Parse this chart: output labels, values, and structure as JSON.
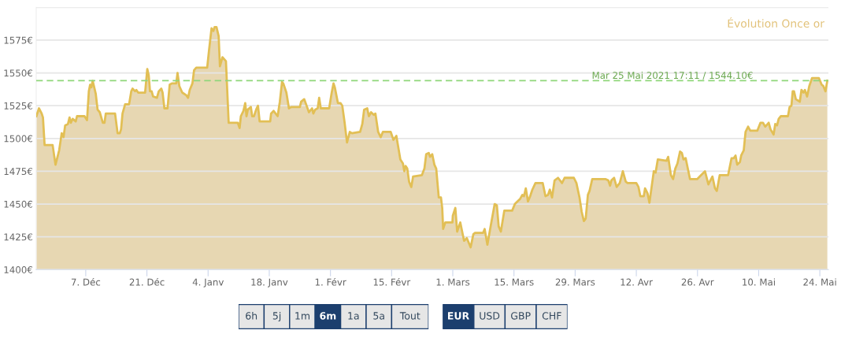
{
  "chart_data": [
    {
      "type": "area",
      "title": "Évolution Once or",
      "grid": "y",
      "legend": false,
      "xlim": [
        "2020-11-25T16:00",
        "2021-05-25T23:00"
      ],
      "ylim": [
        1400,
        1600
      ],
      "yticks": [
        {
          "value": 1400,
          "label": "1400€"
        },
        {
          "value": 1425,
          "label": "1425€"
        },
        {
          "value": 1450,
          "label": "1450€"
        },
        {
          "value": 1475,
          "label": "1475€"
        },
        {
          "value": 1500,
          "label": "1500€"
        },
        {
          "value": 1525,
          "label": "1525€"
        },
        {
          "value": 1550,
          "label": "1550€"
        },
        {
          "value": 1575,
          "label": "1575€"
        },
        {
          "value": 1600,
          "label": null
        }
      ],
      "xticks": [
        {
          "value": "2020-12-07",
          "label": "7. Déc"
        },
        {
          "value": "2020-12-21",
          "label": "21. Déc"
        },
        {
          "value": "2021-01-04",
          "label": "4. Janv"
        },
        {
          "value": "2021-01-18",
          "label": "18. Janv"
        },
        {
          "value": "2021-02-01",
          "label": "1. Févr"
        },
        {
          "value": "2021-02-15",
          "label": "15. Févr"
        },
        {
          "value": "2021-03-01",
          "label": "1. Mars"
        },
        {
          "value": "2021-03-15",
          "label": "15. Mars"
        },
        {
          "value": "2021-03-29",
          "label": "29. Mars"
        },
        {
          "value": "2021-04-12",
          "label": "12. Avr"
        },
        {
          "value": "2021-04-26",
          "label": "26. Avr"
        },
        {
          "value": "2021-05-10",
          "label": "10. Mai"
        },
        {
          "value": "2021-05-24",
          "label": "24. Mai"
        }
      ],
      "ref_lines": [
        {
          "axis": "y",
          "value": 1544.1,
          "label": "Mar 25 Mai 2021 17:11 / 1544.10€",
          "color": "#8fd67a",
          "line_style": "dashed"
        }
      ],
      "series": [
        {
          "color": "#e2bf55",
          "x": [
            "2020-11-25T17:00",
            "2020-11-26T07:00",
            "2020-11-26T22:00",
            "2020-11-27T05:00",
            "2020-11-27T14:00",
            "2020-11-29T10:00",
            "2020-11-30T02:00",
            "2020-11-30T22:00",
            "2020-12-01T12:00",
            "2020-12-01T22:00",
            "2020-12-02T07:00",
            "2020-12-02T22:00",
            "2020-12-03T07:00",
            "2020-12-03T14:00",
            "2020-12-04T00:00",
            "2020-12-04T17:00",
            "2020-12-05T00:00",
            "2020-12-06T17:00",
            "2020-12-07T07:00",
            "2020-12-07T17:00",
            "2020-12-08T00:00",
            "2020-12-08T07:00",
            "2020-12-08T14:00",
            "2020-12-09T07:00",
            "2020-12-09T17:00",
            "2020-12-10T05:00",
            "2020-12-10T22:00",
            "2020-12-11T07:00",
            "2020-12-11T14:00",
            "2020-12-12T02:00",
            "2020-12-13T17:00",
            "2020-12-14T07:00",
            "2020-12-14T19:00",
            "2020-12-15T02:00",
            "2020-12-15T10:00",
            "2020-12-16T00:00",
            "2020-12-16T22:00",
            "2020-12-17T10:00",
            "2020-12-17T17:00",
            "2020-12-18T07:00",
            "2020-12-18T14:00",
            "2020-12-19T00:00",
            "2020-12-20T14:00",
            "2020-12-21T02:00",
            "2020-12-21T10:00",
            "2020-12-21T17:00",
            "2020-12-22T02:00",
            "2020-12-22T10:00",
            "2020-12-23T07:00",
            "2020-12-23T17:00",
            "2020-12-24T07:00",
            "2020-12-24T14:00",
            "2020-12-25T00:00",
            "2020-12-25T17:00",
            "2020-12-26T05:00",
            "2020-12-26T17:00",
            "2020-12-27T17:00",
            "2020-12-28T00:00",
            "2020-12-28T10:00",
            "2020-12-29T02:00",
            "2020-12-30T00:00",
            "2020-12-30T10:00",
            "2020-12-30T19:00",
            "2020-12-31T10:00",
            "2020-12-31T19:00",
            "2021-01-01T07:00",
            "2021-01-03T19:00",
            "2021-01-04T05:00",
            "2021-01-04T19:00",
            "2021-01-05T05:00",
            "2021-01-05T12:00",
            "2021-01-05T22:00",
            "2021-01-06T10:00",
            "2021-01-06T17:00",
            "2021-01-07T07:00",
            "2021-01-08T02:00",
            "2021-01-08T17:00",
            "2021-01-10T19:00",
            "2021-01-11T05:00",
            "2021-01-11T12:00",
            "2021-01-12T02:00",
            "2021-01-12T12:00",
            "2021-01-12T19:00",
            "2021-01-13T02:00",
            "2021-01-13T19:00",
            "2021-01-14T02:00",
            "2021-01-14T12:00",
            "2021-01-15T00:00",
            "2021-01-15T10:00",
            "2021-01-15T19:00",
            "2021-01-18T05:00",
            "2021-01-18T10:00",
            "2021-01-19T00:00",
            "2021-01-19T22:00",
            "2021-01-20T10:00",
            "2021-01-20T22:00",
            "2021-01-21T05:00",
            "2021-01-21T22:00",
            "2021-01-22T12:00",
            "2021-01-23T02:00",
            "2021-01-25T00:00",
            "2021-01-25T07:00",
            "2021-01-26T00:00",
            "2021-01-27T02:00",
            "2021-01-27T19:00",
            "2021-01-28T02:00",
            "2021-01-28T12:00",
            "2021-01-29T02:00",
            "2021-01-29T10:00",
            "2021-01-29T19:00",
            "2021-01-31T17:00",
            "2021-02-01T07:00",
            "2021-02-01T17:00",
            "2021-02-02T00:00",
            "2021-02-02T17:00",
            "2021-02-03T07:00",
            "2021-02-03T17:00",
            "2021-02-04T05:00",
            "2021-02-04T19:00",
            "2021-02-05T10:00",
            "2021-02-05T22:00",
            "2021-02-07T19:00",
            "2021-02-08T07:00",
            "2021-02-08T17:00",
            "2021-02-09T10:00",
            "2021-02-09T19:00",
            "2021-02-10T07:00",
            "2021-02-10T22:00",
            "2021-02-11T07:00",
            "2021-02-11T22:00",
            "2021-02-12T12:00",
            "2021-02-13T00:00",
            "2021-02-14T19:00",
            "2021-02-15T10:00",
            "2021-02-16T02:00",
            "2021-02-17T00:00",
            "2021-02-17T14:00",
            "2021-02-17T22:00",
            "2021-02-18T05:00",
            "2021-02-18T14:00",
            "2021-02-19T00:00",
            "2021-02-19T12:00",
            "2021-02-19T22:00",
            "2021-02-21T22:00",
            "2021-02-22T12:00",
            "2021-02-22T22:00",
            "2021-02-23T12:00",
            "2021-02-23T19:00",
            "2021-02-24T07:00",
            "2021-02-24T19:00",
            "2021-02-25T05:00",
            "2021-02-25T19:00",
            "2021-02-26T07:00",
            "2021-02-26T14:00",
            "2021-02-26T19:00",
            "2021-02-27T07:00",
            "2021-02-28T22:00",
            "2021-03-01T00:00",
            "2021-03-01T14:00",
            "2021-03-02T00:00",
            "2021-03-02T17:00",
            "2021-03-03T05:00",
            "2021-03-03T14:00",
            "2021-03-04T05:00",
            "2021-03-05T02:00",
            "2021-03-05T17:00",
            "2021-03-06T02:00",
            "2021-03-07T22:00",
            "2021-03-08T07:00",
            "2021-03-08T22:00",
            "2021-03-09T17:00",
            "2021-03-10T14:00",
            "2021-03-11T02:00",
            "2021-03-11T12:00",
            "2021-03-12T00:00",
            "2021-03-12T19:00",
            "2021-03-14T14:00",
            "2021-03-15T05:00",
            "2021-03-15T19:00",
            "2021-03-16T10:00",
            "2021-03-16T22:00",
            "2021-03-17T07:00",
            "2021-03-17T17:00",
            "2021-03-18T05:00",
            "2021-03-18T17:00",
            "2021-03-19T05:00",
            "2021-03-19T22:00",
            "2021-03-21T14:00",
            "2021-03-22T05:00",
            "2021-03-22T19:00",
            "2021-03-23T05:00",
            "2021-03-23T17:00",
            "2021-03-24T07:00",
            "2021-03-25T02:00",
            "2021-03-26T00:00",
            "2021-03-26T14:00",
            "2021-03-28T17:00",
            "2021-03-29T07:00",
            "2021-03-30T00:00",
            "2021-03-30T12:00",
            "2021-03-31T00:00",
            "2021-03-31T10:00",
            "2021-03-31T22:00",
            "2021-04-01T07:00",
            "2021-04-01T22:00",
            "2021-04-05T00:00",
            "2021-04-05T14:00",
            "2021-04-06T00:00",
            "2021-04-06T07:00",
            "2021-04-06T22:00",
            "2021-04-07T12:00",
            "2021-04-08T05:00",
            "2021-04-08T22:00",
            "2021-04-09T14:00",
            "2021-04-10T00:00",
            "2021-04-12T00:00",
            "2021-04-12T12:00",
            "2021-04-12T22:00",
            "2021-04-13T17:00",
            "2021-04-14T00:00",
            "2021-04-14T14:00",
            "2021-04-15T00:00",
            "2021-04-16T00:00",
            "2021-04-16T10:00",
            "2021-04-16T22:00",
            "2021-04-18T22:00",
            "2021-04-19T07:00",
            "2021-04-19T22:00",
            "2021-04-20T10:00",
            "2021-04-20T22:00",
            "2021-04-21T10:00",
            "2021-04-22T00:00",
            "2021-04-22T10:00",
            "2021-04-22T19:00",
            "2021-04-23T07:00",
            "2021-04-23T22:00",
            "2021-04-24T07:00",
            "2021-04-25T22:00",
            "2021-04-26T19:00",
            "2021-04-27T17:00",
            "2021-04-28T12:00",
            "2021-04-28T19:00",
            "2021-04-29T10:00",
            "2021-04-30T00:00",
            "2021-04-30T10:00",
            "2021-05-01T02:00",
            "2021-05-03T00:00",
            "2021-05-03T19:00",
            "2021-05-04T07:00",
            "2021-05-04T17:00",
            "2021-05-05T02:00",
            "2021-05-05T17:00",
            "2021-05-06T00:00",
            "2021-05-06T14:00",
            "2021-05-07T00:00",
            "2021-05-07T14:00",
            "2021-05-08T02:00",
            "2021-05-09T17:00",
            "2021-05-10T10:00",
            "2021-05-11T00:00",
            "2021-05-11T12:00",
            "2021-05-12T07:00",
            "2021-05-12T17:00",
            "2021-05-13T10:00",
            "2021-05-13T19:00",
            "2021-05-14T05:00",
            "2021-05-14T14:00",
            "2021-05-15T02:00",
            "2021-05-16T17:00",
            "2021-05-17T02:00",
            "2021-05-17T12:00",
            "2021-05-17T19:00",
            "2021-05-18T02:00",
            "2021-05-18T12:00",
            "2021-05-19T10:00",
            "2021-05-19T19:00",
            "2021-05-20T07:00",
            "2021-05-20T14:00",
            "2021-05-21T02:00",
            "2021-05-21T14:00",
            "2021-05-22T05:00",
            "2021-05-23T19:00",
            "2021-05-24T10:00",
            "2021-05-24T19:00",
            "2021-05-25T07:00",
            "2021-05-25T17:11"
          ],
          "values": [
            1517,
            1523,
            1519,
            1516,
            1495,
            1495,
            1480,
            1491,
            1504,
            1501,
            1510,
            1511,
            1516,
            1512,
            1515,
            1513,
            1517,
            1517,
            1514,
            1536,
            1541,
            1539,
            1544,
            1534,
            1522,
            1520,
            1512,
            1512,
            1519,
            1519,
            1519,
            1504,
            1504,
            1507,
            1519,
            1526,
            1526,
            1536,
            1538,
            1536,
            1537,
            1535,
            1535,
            1553,
            1548,
            1536,
            1536,
            1532,
            1531,
            1536,
            1538,
            1535,
            1523,
            1523,
            1541,
            1542,
            1542,
            1550,
            1540,
            1535,
            1533,
            1531,
            1537,
            1542,
            1552,
            1554,
            1554,
            1567,
            1584,
            1582,
            1585,
            1585,
            1578,
            1555,
            1562,
            1559,
            1512,
            1512,
            1508,
            1517,
            1521,
            1527,
            1517,
            1522,
            1524,
            1517,
            1517,
            1522,
            1525,
            1513,
            1513,
            1519,
            1521,
            1517,
            1528,
            1543,
            1542,
            1535,
            1523,
            1524,
            1524,
            1528,
            1530,
            1520,
            1523,
            1519,
            1522,
            1523,
            1531,
            1523,
            1523,
            1535,
            1542,
            1539,
            1527,
            1527,
            1525,
            1513,
            1497,
            1505,
            1504,
            1505,
            1511,
            1522,
            1523,
            1517,
            1520,
            1518,
            1519,
            1505,
            1501,
            1505,
            1505,
            1499,
            1502,
            1484,
            1481,
            1475,
            1479,
            1477,
            1467,
            1463,
            1471,
            1472,
            1477,
            1488,
            1489,
            1486,
            1488,
            1480,
            1477,
            1455,
            1455,
            1447,
            1431,
            1436,
            1436,
            1441,
            1447,
            1429,
            1436,
            1428,
            1422,
            1424,
            1417,
            1427,
            1428,
            1428,
            1431,
            1419,
            1434,
            1450,
            1449,
            1433,
            1429,
            1445,
            1445,
            1450,
            1452,
            1454,
            1457,
            1456,
            1462,
            1452,
            1456,
            1461,
            1466,
            1466,
            1456,
            1457,
            1461,
            1455,
            1468,
            1470,
            1466,
            1470,
            1470,
            1466,
            1455,
            1444,
            1437,
            1439,
            1457,
            1460,
            1469,
            1469,
            1468,
            1464,
            1468,
            1470,
            1463,
            1466,
            1475,
            1467,
            1466,
            1466,
            1463,
            1456,
            1456,
            1462,
            1458,
            1451,
            1475,
            1474,
            1484,
            1483,
            1486,
            1472,
            1469,
            1477,
            1481,
            1490,
            1489,
            1484,
            1485,
            1475,
            1469,
            1469,
            1472,
            1475,
            1465,
            1467,
            1471,
            1462,
            1460,
            1472,
            1472,
            1485,
            1485,
            1487,
            1480,
            1482,
            1487,
            1491,
            1505,
            1509,
            1506,
            1506,
            1512,
            1512,
            1509,
            1512,
            1507,
            1503,
            1511,
            1510,
            1515,
            1517,
            1517,
            1524,
            1525,
            1536,
            1536,
            1530,
            1528,
            1537,
            1535,
            1537,
            1532,
            1540,
            1546,
            1546,
            1541,
            1540,
            1536,
            1544.1
          ]
        }
      ]
    },
    {
      "type": "other",
      "categories": [
        "6h",
        "5j",
        "1m",
        "6m",
        "1a",
        "5a",
        "Tout"
      ],
      "colors": [
        "#e6e6e6",
        "#e6e6e6",
        "#e6e6e6",
        "#1c3f6e",
        "#e6e6e6",
        "#e6e6e6",
        "#e6e6e6"
      ]
    },
    {
      "type": "other",
      "categories": [
        "EUR",
        "USD",
        "GBP",
        "CHF"
      ],
      "colors": [
        "#1c3f6e",
        "#e6e6e6",
        "#e6e6e6",
        "#e6e6e6"
      ]
    }
  ]
}
